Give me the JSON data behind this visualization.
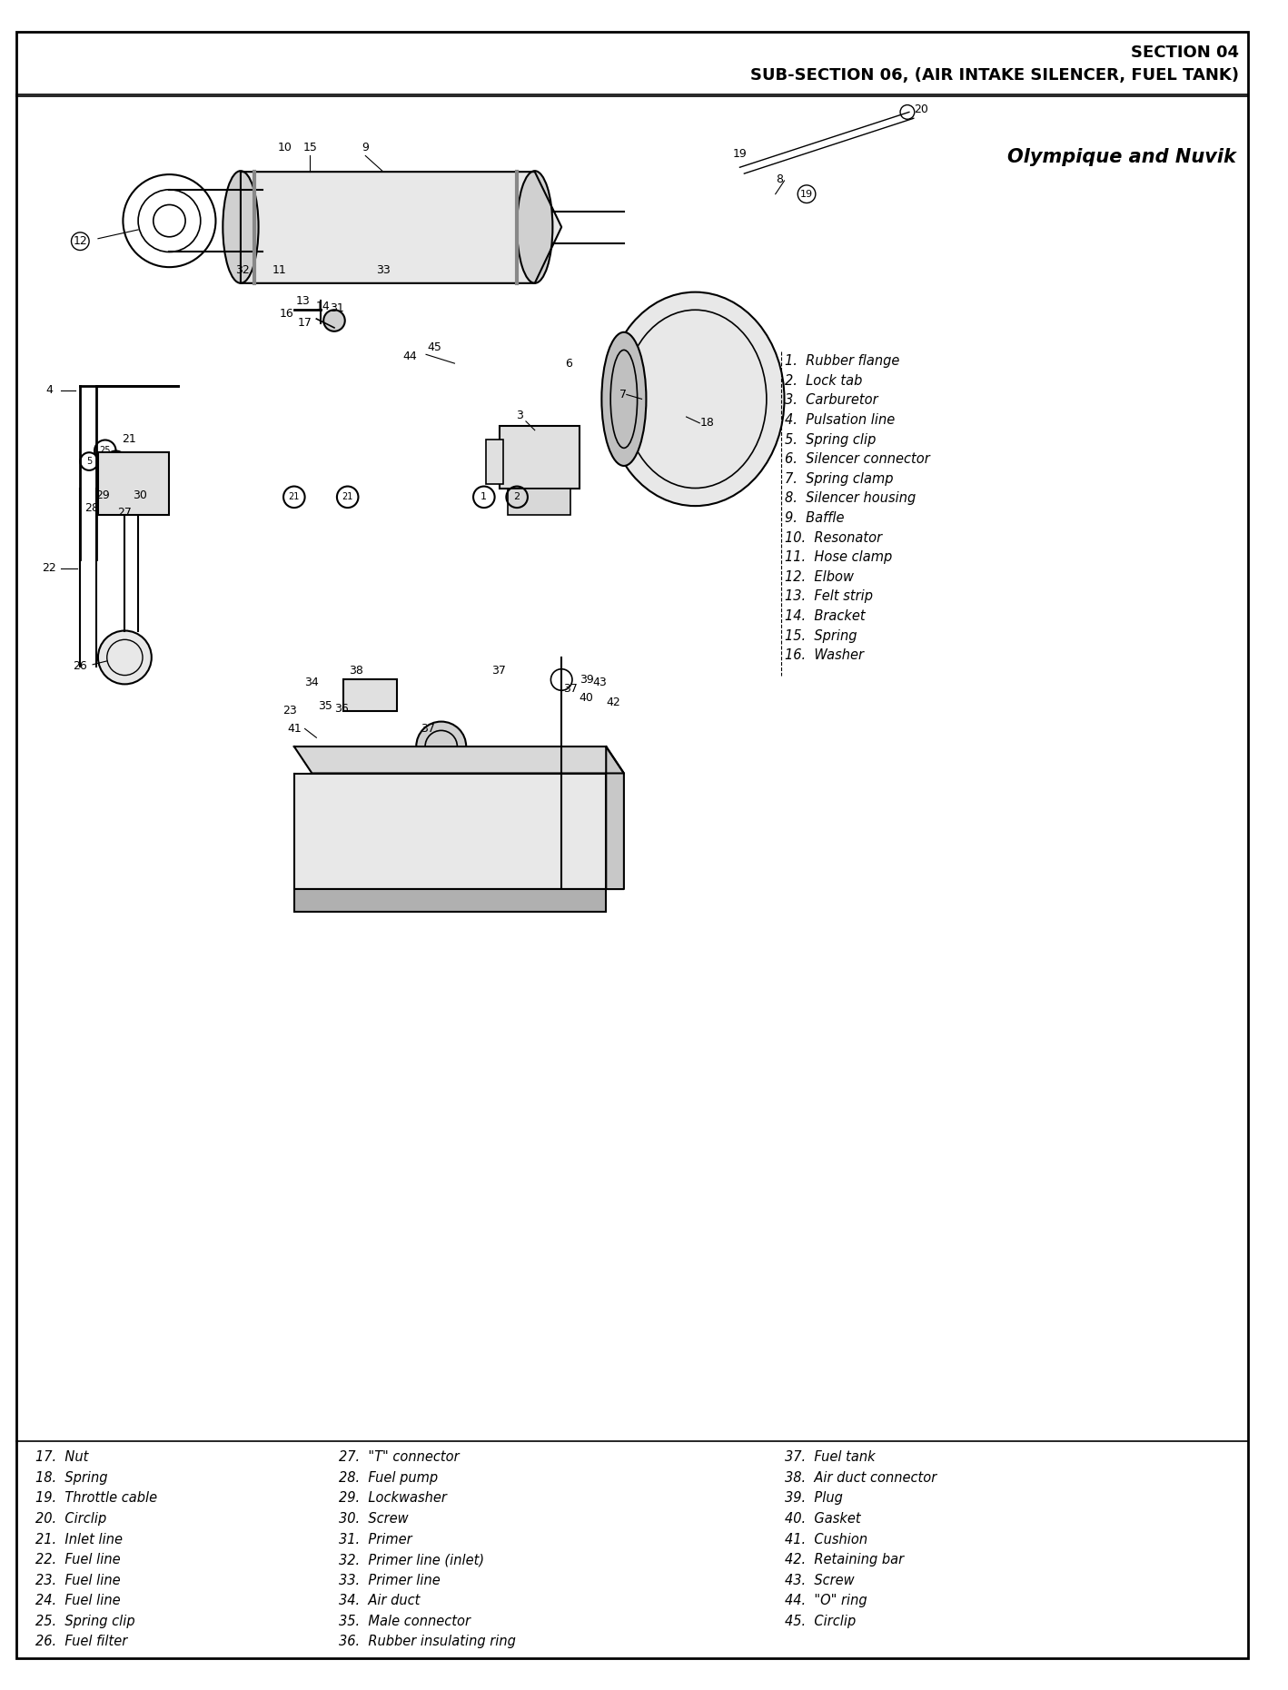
{
  "title_line1": "SECTION 04",
  "title_line2": "SUB-SECTION 06, (AIR INTAKE SILENCER, FUEL TANK)",
  "diagram_title": "Olympique and Nuvik",
  "bg_color": "#ffffff",
  "border_color": "#000000",
  "text_color": "#000000",
  "title_fontsize": 13,
  "subtitle_fontsize": 13,
  "diagram_title_fontsize": 15,
  "legend_fontsize": 10.5,
  "parts_list_col1": [
    "1.  Rubber flange",
    "2.  Lock tab",
    "3.  Carburetor",
    "4.  Pulsation line",
    "5.  Spring clip",
    "6.  Silencer connector",
    "7.  Spring clamp",
    "8.  Silencer housing",
    "9.  Baffle",
    "10.  Resonator",
    "11.  Hose clamp",
    "12.  Elbow",
    "13.  Felt strip",
    "14.  Bracket",
    "15.  Spring",
    "16.  Washer"
  ],
  "parts_list_col2": [
    "17.  Nut",
    "18.  Spring",
    "19.  Throttle cable",
    "20.  Circlip",
    "21.  Inlet line",
    "22.  Fuel line",
    "23.  Fuel line",
    "24.  Fuel line",
    "25.  Spring clip",
    "26.  Fuel filter"
  ],
  "parts_list_col3": [
    "27.  \"T\" connector",
    "28.  Fuel pump",
    "29.  Lockwasher",
    "30.  Screw",
    "31.  Primer",
    "32.  Primer line (inlet)",
    "33.  Primer line",
    "34.  Air duct",
    "35.  Male connector",
    "36.  Rubber insulating ring"
  ],
  "parts_list_col4": [
    "37.  Fuel tank",
    "38.  Air duct connector",
    "39.  Plug",
    "40.  Gasket",
    "41.  Cushion",
    "42.  Retaining bar",
    "43.  Screw",
    "44.  \"O\" ring",
    "45.  Circlip"
  ]
}
